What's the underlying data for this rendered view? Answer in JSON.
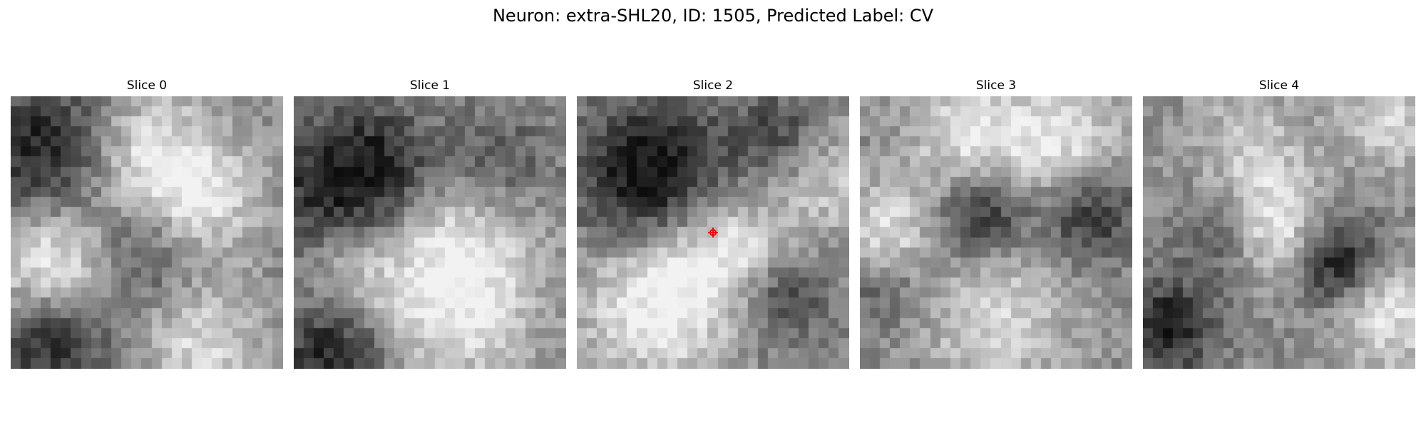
{
  "figure": {
    "suptitle": "Neuron: extra-SHL20, ID: 1505, Predicted Label: CV"
  },
  "slices": [
    {
      "title": "Slice 0"
    },
    {
      "title": "Slice 1"
    },
    {
      "title": "Slice 2"
    },
    {
      "title": "Slice 3"
    },
    {
      "title": "Slice 4"
    }
  ],
  "marker": {
    "color": "#ff0000",
    "slice_index": 2,
    "shape": "circle-crosshair"
  },
  "colormap": "gray"
}
